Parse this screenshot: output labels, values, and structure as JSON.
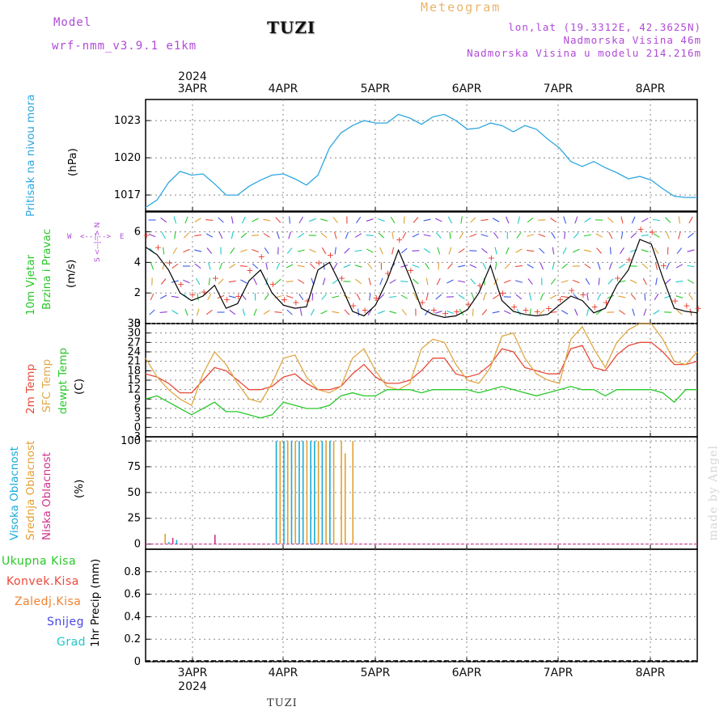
{
  "header": {
    "model_label": "Model",
    "model_name": "wrf-nmm_v3.9.1  e1km",
    "title": "TUZI",
    "meteogram_label": "Meteogram",
    "lonlat": "lon,lat (19.3312E, 42.3625N)",
    "elevation": "Nadmorska Visina 46m",
    "model_elevation": "Nadmorska Visina u modelu 214.216m"
  },
  "axis_dates": {
    "year": "2024",
    "labels": [
      "3APR",
      "4APR",
      "5APR",
      "6APR",
      "7APR",
      "8APR"
    ]
  },
  "watermark": "made by Angel",
  "footer": "TUZI",
  "panel_labels": {
    "pressure": {
      "name": "Pritisak na nivou mora",
      "unit": "(hPa)"
    },
    "wind": {
      "name1": "10m Vjetar",
      "name2": "Brzina i Pravac",
      "unit": "(m/s)",
      "compass_w": "W",
      "compass_e": "E",
      "compass_n": "<--|-->",
      "compass_arrow": "S <--|--> N"
    },
    "temp": {
      "t2m": "2m Temp",
      "sfc": "SFC Temp",
      "dew": "dewpt Temp",
      "unit": "(C)"
    },
    "cloud": {
      "high": "Visoka Oblacnost",
      "mid": "Srednja Oblacnost",
      "low": "Niska Oblacnost",
      "unit": "(%)"
    },
    "precip": {
      "unit": "1hr Precip (mm)",
      "legend": [
        "Ukupna Kisa",
        "Konvek.Kisa",
        "Zaledj.Kisa",
        "Snijeg",
        "Grad"
      ]
    }
  },
  "colors": {
    "pressure": "#2ea7e0",
    "wind_speed": "#000000",
    "wind_gust": "#e8392b",
    "t2m": "#e84a3a",
    "sfc": "#e0a848",
    "dew": "#28c828",
    "cloud_high": "#1aaad8",
    "cloud_mid": "#e0a030",
    "cloud_low": "#d0308a",
    "precip_total": "#28c828",
    "precip_conv": "#e84a3a",
    "precip_frz": "#f08030",
    "precip_snow": "#4848e8",
    "precip_grad": "#20c8c8",
    "title_magenta": "#b04ad8",
    "meteogram_orange": "#e8b46a"
  },
  "chart_data": [
    {
      "type": "line",
      "title": "Pritisak na nivou mora",
      "ylabel": "(hPa)",
      "ylim": [
        1015.7,
        1024.7
      ],
      "yticks": [
        1017,
        1020,
        1023
      ],
      "x_hours": [
        0,
        3,
        6,
        9,
        12,
        15,
        18,
        21,
        24,
        27,
        30,
        33,
        36,
        39,
        42,
        45,
        48,
        51,
        54,
        57,
        60,
        63,
        66,
        69,
        72,
        75,
        78,
        81,
        84,
        87,
        90,
        93,
        96,
        99,
        102,
        105,
        108,
        111,
        114,
        117,
        120,
        123,
        126,
        129,
        132,
        135,
        138,
        141,
        144
      ],
      "series": [
        {
          "name": "Pritisak",
          "values": [
            1016.0,
            1016.6,
            1018.0,
            1018.9,
            1018.6,
            1018.7,
            1017.9,
            1017.0,
            1017.0,
            1017.7,
            1018.2,
            1018.6,
            1018.7,
            1018.3,
            1017.8,
            1018.6,
            1020.8,
            1022.0,
            1022.6,
            1023.0,
            1022.8,
            1022.8,
            1023.5,
            1023.2,
            1022.7,
            1023.3,
            1023.5,
            1023.0,
            1022.3,
            1022.4,
            1022.8,
            1022.6,
            1022.1,
            1022.6,
            1022.3,
            1021.5,
            1020.8,
            1019.7,
            1019.3,
            1019.7,
            1019.2,
            1018.8,
            1018.3,
            1018.5,
            1018.2,
            1017.5,
            1016.9,
            1016.8,
            1016.8
          ]
        }
      ]
    },
    {
      "type": "line",
      "title": "10m Vjetar Brzina i Pravac",
      "ylabel": "(m/s)",
      "ylim": [
        0,
        7.3
      ],
      "yticks": [
        0,
        2,
        4,
        6
      ],
      "x_hours": [
        0,
        3,
        6,
        9,
        12,
        15,
        18,
        21,
        24,
        27,
        30,
        33,
        36,
        39,
        42,
        45,
        48,
        51,
        54,
        57,
        60,
        63,
        66,
        69,
        72,
        75,
        78,
        81,
        84,
        87,
        90,
        93,
        96,
        99,
        102,
        105,
        108,
        111,
        114,
        117,
        120,
        123,
        126,
        129,
        132,
        135,
        138,
        141,
        144
      ],
      "series": [
        {
          "name": "speed",
          "values": [
            5.0,
            4.5,
            3.5,
            2.0,
            1.5,
            1.8,
            2.5,
            1.0,
            1.3,
            2.8,
            3.5,
            2.0,
            1.2,
            1.0,
            1.1,
            3.5,
            4.0,
            2.5,
            0.8,
            0.5,
            1.2,
            2.8,
            4.8,
            3.0,
            1.0,
            0.6,
            0.4,
            0.5,
            0.9,
            2.0,
            3.8,
            1.5,
            0.8,
            0.6,
            0.5,
            0.6,
            1.2,
            1.8,
            1.5,
            0.7,
            1.0,
            2.5,
            3.5,
            5.5,
            5.2,
            3.0,
            1.0,
            0.8,
            0.7
          ]
        },
        {
          "name": "gust",
          "values": [
            5.8,
            5.0,
            4.0,
            2.6,
            1.9,
            2.1,
            3.0,
            1.6,
            1.8,
            3.5,
            4.4,
            2.6,
            1.6,
            1.4,
            1.5,
            4.0,
            4.5,
            3.0,
            1.2,
            0.9,
            1.7,
            3.3,
            5.5,
            3.5,
            1.4,
            0.9,
            0.7,
            0.8,
            1.3,
            2.5,
            4.3,
            2.0,
            1.1,
            0.9,
            0.8,
            1.0,
            1.6,
            2.2,
            1.9,
            1.1,
            1.4,
            3.0,
            4.2,
            6.2,
            6.0,
            3.8,
            1.5,
            1.2,
            1.0
          ]
        }
      ]
    },
    {
      "type": "line",
      "title": "2m Temp / SFC Temp / dewpt Temp",
      "ylabel": "(C)",
      "ylim": [
        -3,
        33
      ],
      "yticks": [
        -3,
        0,
        3,
        6,
        9,
        12,
        15,
        18,
        21,
        24,
        27,
        30,
        33
      ],
      "x_hours": [
        0,
        3,
        6,
        9,
        12,
        15,
        18,
        21,
        24,
        27,
        30,
        33,
        36,
        39,
        42,
        45,
        48,
        51,
        54,
        57,
        60,
        63,
        66,
        69,
        72,
        75,
        78,
        81,
        84,
        87,
        90,
        93,
        96,
        99,
        102,
        105,
        108,
        111,
        114,
        117,
        120,
        123,
        126,
        129,
        132,
        135,
        138,
        141,
        144
      ],
      "series": [
        {
          "name": "2m Temp",
          "values": [
            17,
            16,
            14,
            11,
            11,
            15,
            19,
            18,
            15,
            12,
            12,
            13,
            16,
            17,
            14,
            12,
            12,
            13,
            17,
            20,
            16,
            14,
            14,
            15,
            18,
            22,
            22,
            17,
            16,
            17,
            20,
            25,
            24,
            19,
            18,
            17,
            17,
            25,
            26,
            19,
            18,
            23,
            26,
            27,
            27,
            24,
            20,
            20,
            21
          ]
        },
        {
          "name": "SFC Temp",
          "values": [
            22,
            16,
            12,
            9,
            7,
            17,
            24,
            20,
            14,
            9,
            8,
            14,
            22,
            23,
            16,
            12,
            11,
            13,
            22,
            25,
            18,
            13,
            12,
            14,
            25,
            28,
            27,
            20,
            15,
            14,
            19,
            29,
            30,
            22,
            17,
            15,
            14,
            28,
            32,
            25,
            19,
            27,
            31,
            33,
            33,
            28,
            21,
            20,
            24
          ]
        },
        {
          "name": "dewpt Temp",
          "values": [
            9,
            10,
            8,
            6,
            4,
            6,
            8,
            5,
            5,
            4,
            3,
            4,
            8,
            7,
            6,
            6,
            7,
            10,
            11,
            10,
            10,
            12,
            12,
            12,
            11,
            12,
            12,
            12,
            12,
            11,
            12,
            13,
            12,
            11,
            10,
            11,
            12,
            13,
            12,
            12,
            10,
            12,
            12,
            12,
            12,
            11,
            8,
            12,
            12
          ]
        }
      ]
    },
    {
      "type": "bar",
      "title": "Visoka / Srednja / Niska Oblacnost",
      "ylabel": "(%)",
      "ylim": [
        -5,
        104
      ],
      "yticks": [
        0,
        25,
        50,
        75,
        100
      ],
      "series": [
        {
          "name": "Visoka Oblacnost",
          "x_hours": [
            6,
            8,
            18,
            34,
            36,
            38,
            40,
            41,
            43,
            44,
            46,
            48
          ],
          "values": [
            2,
            4,
            8,
            100,
            100,
            100,
            100,
            100,
            100,
            100,
            100,
            100
          ]
        },
        {
          "name": "Srednja Oblacnost",
          "x_hours": [
            5,
            35,
            37,
            39,
            42,
            45,
            47,
            49,
            51,
            52,
            54
          ],
          "values": [
            10,
            100,
            100,
            100,
            100,
            100,
            100,
            100,
            100,
            88,
            100
          ]
        },
        {
          "name": "Niska Oblacnost",
          "x_hours": [
            7,
            18
          ],
          "values": [
            6,
            9
          ]
        }
      ]
    },
    {
      "type": "bar",
      "title": "1hr Precip",
      "ylabel": "1hr Precip (mm)",
      "ylim": [
        0,
        1.0
      ],
      "yticks": [
        0,
        0.2,
        0.4,
        0.6,
        0.8
      ],
      "series": [
        {
          "name": "Ukupna Kisa",
          "values": []
        },
        {
          "name": "Konvek.Kisa",
          "values": []
        },
        {
          "name": "Zaledj.Kisa",
          "values": []
        },
        {
          "name": "Snijeg",
          "values": []
        },
        {
          "name": "Grad",
          "values": []
        }
      ]
    }
  ]
}
